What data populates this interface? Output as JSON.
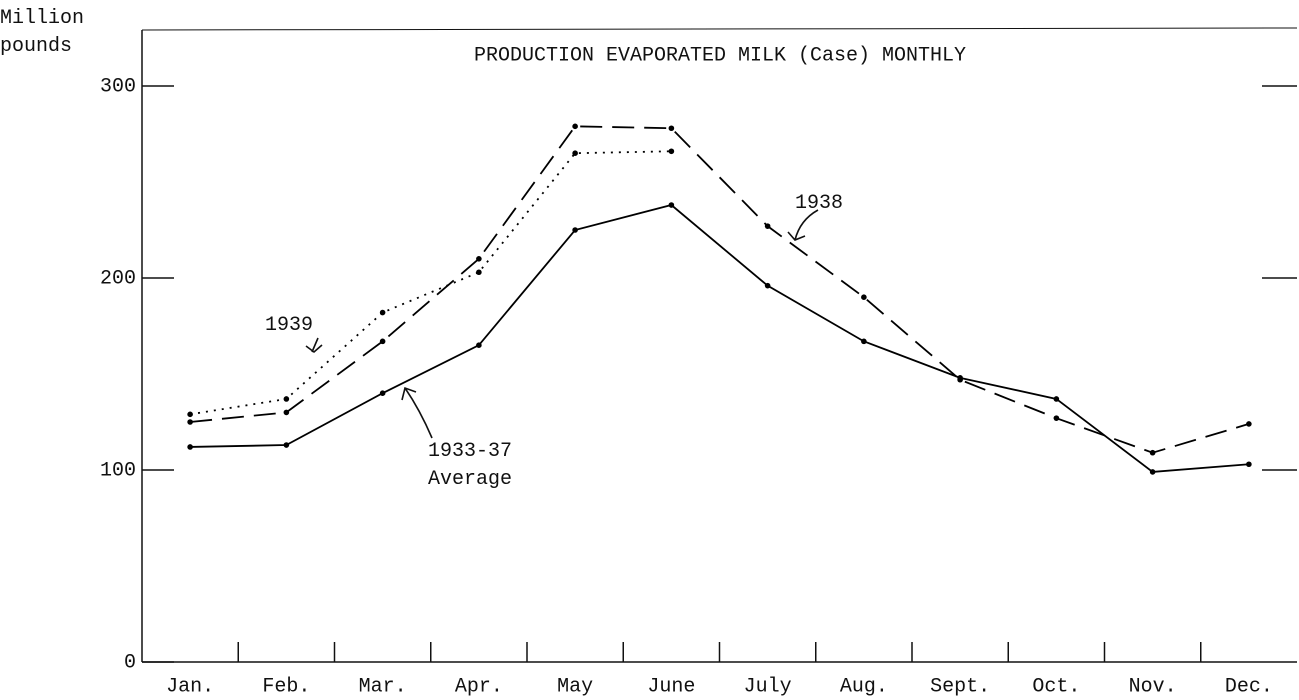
{
  "chart_data": {
    "type": "line",
    "title": "PRODUCTION EVAPORATED MILK (Case) MONTHLY",
    "y_label": "Million pounds",
    "categories": [
      "Jan.",
      "Feb.",
      "Mar.",
      "Apr.",
      "May",
      "June",
      "July",
      "Aug.",
      "Sept.",
      "Oct.",
      "Nov.",
      "Dec."
    ],
    "series": [
      {
        "name": "1939",
        "color": "#000000",
        "style": "dotted",
        "values": [
          129,
          137,
          182,
          203,
          265,
          266,
          null,
          null,
          null,
          null,
          null,
          null
        ]
      },
      {
        "name": "1938",
        "color": "#000000",
        "style": "dashed",
        "values": [
          125,
          130,
          167,
          210,
          279,
          278,
          227,
          190,
          147,
          127,
          109,
          124
        ]
      },
      {
        "name": "1933-37 Average",
        "color": "#000000",
        "style": "solid",
        "values": [
          112,
          113,
          140,
          165,
          225,
          238,
          196,
          167,
          148,
          137,
          99,
          103
        ]
      }
    ],
    "ylim": [
      0,
      300
    ],
    "yticks": [
      0,
      100,
      200,
      300
    ],
    "grid": false
  }
}
